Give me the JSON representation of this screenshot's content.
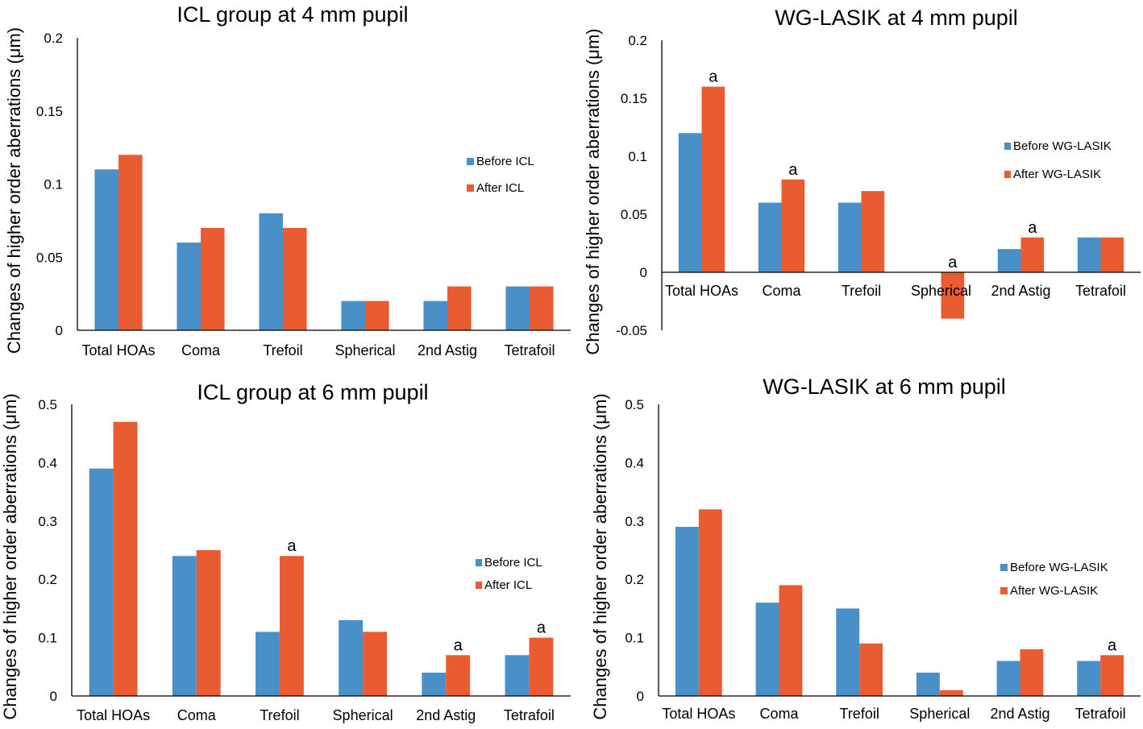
{
  "colors": {
    "before": "#4a90c8",
    "after": "#e95c31",
    "axis": "#000000"
  },
  "chart_data": [
    {
      "type": "bar",
      "title": "ICL group at 4 mm pupil",
      "ylabel": "Changes of higher order aberrations (μm)",
      "categories": [
        "Total HOAs",
        "Coma",
        "Trefoil",
        "Spherical",
        "2nd Astig",
        "Tetrafoil"
      ],
      "series": [
        {
          "name": "Before ICL",
          "values": [
            0.11,
            0.06,
            0.08,
            0.02,
            0.02,
            0.03
          ]
        },
        {
          "name": "After ICL",
          "values": [
            0.12,
            0.07,
            0.07,
            0.02,
            0.03,
            0.03
          ]
        }
      ],
      "ylim": [
        0,
        0.2
      ],
      "yticks": [
        "0",
        "0.05",
        "0.1",
        "0.15",
        "0.2"
      ],
      "ytick_values": [
        0,
        0.05,
        0.1,
        0.15,
        0.2
      ],
      "annotations": [
        "",
        "",
        "",
        "",
        "",
        ""
      ],
      "legend": "right"
    },
    {
      "type": "bar",
      "title": "WG-LASIK at 4 mm pupil",
      "ylabel": "Changes of higher order aberrations (μm)",
      "categories": [
        "Total HOAs",
        "Coma",
        "Trefoil",
        "Spherical",
        "2nd Astig",
        "Tetrafoil"
      ],
      "series": [
        {
          "name": "Before WG-LASIK",
          "values": [
            0.12,
            0.06,
            0.06,
            0,
            0.02,
            0.03
          ]
        },
        {
          "name": "After WG-LASIK",
          "values": [
            0.16,
            0.08,
            0.07,
            -0.04,
            0.03,
            0.03
          ]
        }
      ],
      "ylim": [
        -0.05,
        0.2
      ],
      "yticks": [
        "-0.05",
        "0",
        "0.05",
        "0.1",
        "0.15",
        "0.2"
      ],
      "ytick_values": [
        -0.05,
        0,
        0.05,
        0.1,
        0.15,
        0.2
      ],
      "annotations": [
        "a",
        "a",
        "",
        "a",
        "a",
        ""
      ],
      "legend": "right"
    },
    {
      "type": "bar",
      "title": "ICL group at 6 mm pupil",
      "ylabel": "Changes of higher order aberrations (μm)",
      "categories": [
        "Total HOAs",
        "Coma",
        "Trefoil",
        "Spherical",
        "2nd Astig",
        "Tetrafoil"
      ],
      "series": [
        {
          "name": "Before ICL",
          "values": [
            0.39,
            0.24,
            0.11,
            0.13,
            0.04,
            0.07
          ]
        },
        {
          "name": "After ICL",
          "values": [
            0.47,
            0.25,
            0.24,
            0.11,
            0.07,
            0.1
          ]
        }
      ],
      "ylim": [
        0,
        0.5
      ],
      "yticks": [
        "0",
        "0.1",
        "0.2",
        "0.3",
        "0.4",
        "0.5"
      ],
      "ytick_values": [
        0,
        0.1,
        0.2,
        0.3,
        0.4,
        0.5
      ],
      "annotations": [
        "",
        "",
        "a",
        "",
        "a",
        "a"
      ],
      "legend": "right"
    },
    {
      "type": "bar",
      "title": "WG-LASIK at 6 mm pupil",
      "ylabel": "Changes of higher order aberrations (μm)",
      "categories": [
        "Total HOAs",
        "Coma",
        "Trefoil",
        "Spherical",
        "2nd Astig",
        "Tetrafoil"
      ],
      "series": [
        {
          "name": "Before WG-LASIK",
          "values": [
            0.29,
            0.16,
            0.15,
            0.04,
            0.06,
            0.06
          ]
        },
        {
          "name": "After WG-LASIK",
          "values": [
            0.32,
            0.19,
            0.09,
            0.01,
            0.08,
            0.07
          ]
        }
      ],
      "ylim": [
        0,
        0.5
      ],
      "yticks": [
        "0",
        "0.1",
        "0.2",
        "0.3",
        "0.4",
        "0.5"
      ],
      "ytick_values": [
        0,
        0.1,
        0.2,
        0.3,
        0.4,
        0.5
      ],
      "annotations": [
        "",
        "",
        "",
        "",
        "",
        "a"
      ],
      "legend": "right"
    }
  ]
}
